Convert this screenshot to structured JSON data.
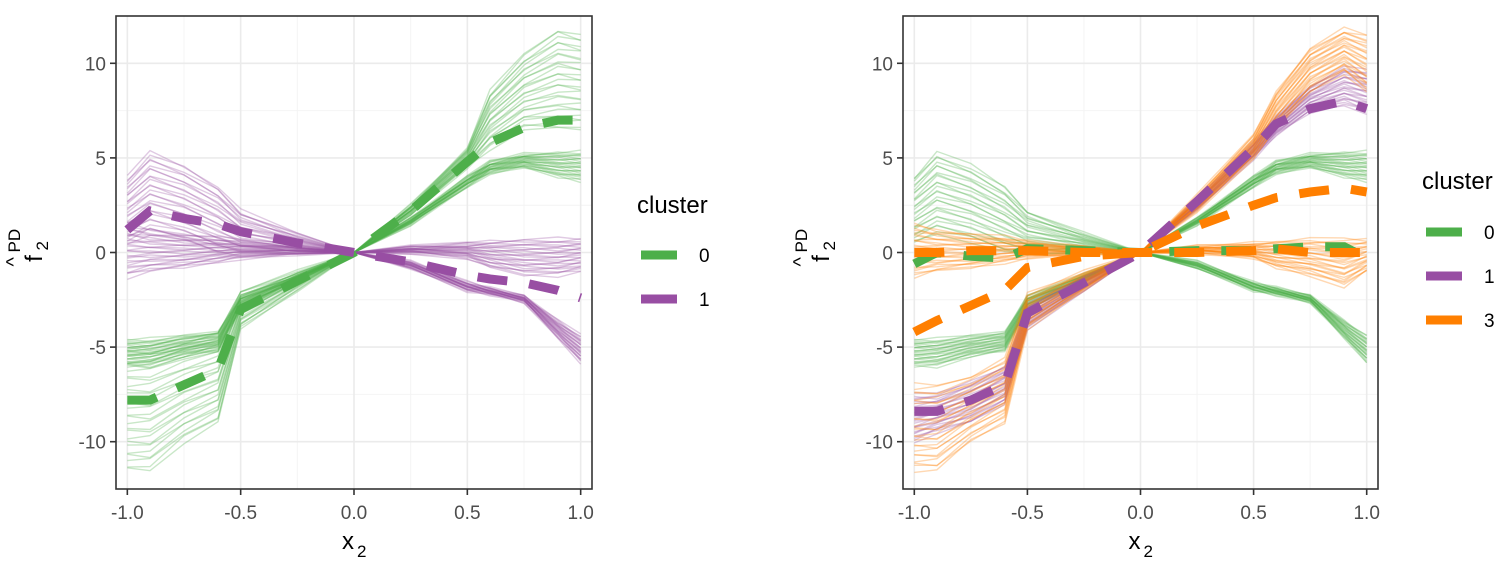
{
  "colors": {
    "cluster_0": "#4daf4a",
    "cluster_1": "#984ea3",
    "cluster_3": "#ff7f00",
    "grid_major": "#ebebeb",
    "grid_minor": "#f4f4f4",
    "panel_border": "#333333"
  },
  "chart_data": [
    {
      "type": "line",
      "xlabel": "x",
      "xlabel_sub": "2",
      "ylabel": "f",
      "ylabel_sub": "2",
      "ylabel_sup": "PD",
      "ylabel_hat": "^",
      "xlim": [
        -1.05,
        1.05
      ],
      "ylim": [
        -12.5,
        12.5
      ],
      "xticks": [
        -1.0,
        -0.5,
        0.0,
        0.5,
        1.0
      ],
      "xtick_labels": [
        "-1.0",
        "-0.5",
        "0.0",
        "0.5",
        "1.0"
      ],
      "yticks": [
        -10,
        -5,
        0,
        5,
        10
      ],
      "ytick_labels": [
        "-10",
        "-5",
        "0",
        "5",
        "10"
      ],
      "grid": true,
      "legend": {
        "title": "cluster",
        "position": "right",
        "labels": [
          "0",
          "1"
        ]
      },
      "x": [
        -1.0,
        -0.9,
        -0.75,
        -0.6,
        -0.5,
        -0.25,
        0.0,
        0.25,
        0.5,
        0.6,
        0.75,
        0.9,
        1.0
      ],
      "series": [
        {
          "name": "0",
          "role": "ice_band",
          "lower": [
            -11.5,
            -11.5,
            -10,
            -9,
            -4,
            -2,
            0,
            2,
            4.5,
            5.5,
            6.5,
            6.5,
            6.5
          ],
          "upper": [
            -5,
            -5,
            -4.6,
            -4.2,
            -2,
            -1,
            0,
            2.5,
            5.5,
            8.5,
            10.5,
            11.8,
            11.5
          ]
        },
        {
          "name": "0",
          "role": "ice_band",
          "lower": [
            -6,
            -6,
            -5.5,
            -5.2,
            -3,
            -1.5,
            0,
            1.5,
            3.5,
            4.2,
            4.5,
            4.0,
            3.8
          ],
          "upper": [
            -4.6,
            -4.6,
            -4.4,
            -4.2,
            -2.3,
            -1.2,
            0,
            1.8,
            4.0,
            4.8,
            5.2,
            5.3,
            5.3
          ]
        },
        {
          "name": "1",
          "role": "ice_band",
          "lower": [
            0.5,
            1.0,
            0.6,
            0.0,
            -0.1,
            0.0,
            0,
            -0.8,
            -2.0,
            -2.2,
            -2.6,
            -4.5,
            -5.8
          ],
          "upper": [
            4.0,
            5.3,
            4.6,
            3.5,
            2.2,
            1.0,
            0,
            -0.5,
            -1.6,
            -1.9,
            -2.3,
            -3.6,
            -4.4
          ]
        },
        {
          "name": "1",
          "role": "ice_band",
          "lower": [
            -1.3,
            -1.0,
            -0.8,
            -0.5,
            -0.3,
            -0.1,
            0,
            0.0,
            -0.3,
            -0.8,
            -1.2,
            -1.2,
            -1.0
          ],
          "upper": [
            1.5,
            1.2,
            1.0,
            0.8,
            0.6,
            0.3,
            0,
            0.3,
            0.5,
            0.6,
            0.7,
            0.7,
            0.7
          ]
        },
        {
          "name": "0",
          "role": "mean",
          "values": [
            -7.8,
            -7.8,
            -7.0,
            -6.2,
            -3.0,
            -1.5,
            0,
            2.2,
            4.8,
            5.8,
            6.6,
            7.0,
            7.0
          ]
        },
        {
          "name": "1",
          "role": "mean",
          "values": [
            1.2,
            2.2,
            1.8,
            1.5,
            1.1,
            0.5,
            0,
            -0.5,
            -1.2,
            -1.4,
            -1.6,
            -2.0,
            -2.4
          ]
        }
      ]
    },
    {
      "type": "line",
      "xlabel": "x",
      "xlabel_sub": "2",
      "ylabel": "f",
      "ylabel_sub": "2",
      "ylabel_sup": "PD",
      "ylabel_hat": "^",
      "xlim": [
        -1.05,
        1.05
      ],
      "ylim": [
        -12.5,
        12.5
      ],
      "xticks": [
        -1.0,
        -0.5,
        0.0,
        0.5,
        1.0
      ],
      "xtick_labels": [
        "-1.0",
        "-0.5",
        "0.0",
        "0.5",
        "1.0"
      ],
      "yticks": [
        -10,
        -5,
        0,
        5,
        10
      ],
      "ytick_labels": [
        "-10",
        "-5",
        "0",
        "5",
        "10"
      ],
      "grid": true,
      "legend": {
        "title": "cluster",
        "position": "right",
        "labels": [
          "0",
          "1",
          "3"
        ]
      },
      "x": [
        -1.0,
        -0.9,
        -0.75,
        -0.6,
        -0.5,
        -0.25,
        0.0,
        0.25,
        0.5,
        0.6,
        0.75,
        0.9,
        1.0
      ],
      "series": [
        {
          "name": "0",
          "role": "ice_band",
          "lower": [
            0.5,
            1.0,
            0.6,
            0.0,
            -0.1,
            0.0,
            0,
            -0.8,
            -2.0,
            -2.2,
            -2.6,
            -4.5,
            -5.8
          ],
          "upper": [
            4.0,
            5.3,
            4.6,
            3.5,
            2.2,
            1.0,
            0,
            -0.5,
            -1.6,
            -1.9,
            -2.3,
            -3.6,
            -4.4
          ]
        },
        {
          "name": "0",
          "role": "ice_band",
          "lower": [
            -6,
            -6,
            -5.5,
            -5.2,
            -3,
            -1.5,
            0,
            1.5,
            3.5,
            4.2,
            4.5,
            4.0,
            3.8
          ],
          "upper": [
            -4.6,
            -4.6,
            -4.4,
            -4.2,
            -2.3,
            -1.2,
            0,
            1.8,
            4.0,
            4.8,
            5.2,
            5.3,
            5.3
          ]
        },
        {
          "name": "1",
          "role": "ice_band",
          "lower": [
            -10,
            -9.5,
            -9,
            -8,
            -4,
            -2,
            0,
            2.3,
            5,
            6.2,
            7.4,
            7.8,
            7.4
          ],
          "upper": [
            -7.5,
            -7.5,
            -6.8,
            -6,
            -2.8,
            -1.3,
            0,
            2.8,
            5.8,
            7.2,
            8.8,
            9.8,
            9.6
          ]
        },
        {
          "name": "3",
          "role": "ice_band",
          "lower": [
            -11.5,
            -11.5,
            -10,
            -9,
            -4,
            -2,
            0,
            2.2,
            5,
            6.5,
            8.5,
            9.5,
            8.5
          ],
          "upper": [
            -7.0,
            -7.0,
            -6.5,
            -5.6,
            -2.2,
            -1.0,
            0,
            3.0,
            6.2,
            8.5,
            10.8,
            11.8,
            11.5
          ]
        },
        {
          "name": "3",
          "role": "ice_band",
          "lower": [
            -1.3,
            -1.0,
            -0.8,
            -0.5,
            -0.3,
            -0.1,
            0,
            0.0,
            -0.3,
            -0.8,
            -1.2,
            -1.8,
            -1.0
          ],
          "upper": [
            1.5,
            1.2,
            1.0,
            0.8,
            0.6,
            0.3,
            0,
            0.3,
            0.5,
            0.6,
            0.7,
            0.7,
            0.7
          ]
        },
        {
          "name": "0",
          "role": "mean",
          "values": [
            -0.6,
            0.0,
            -0.2,
            -0.3,
            0.2,
            0.1,
            0,
            0.1,
            0.1,
            0.2,
            0.3,
            0.3,
            -0.3
          ]
        },
        {
          "name": "1",
          "role": "mean",
          "values": [
            -8.4,
            -8.4,
            -7.8,
            -7.0,
            -3.2,
            -1.6,
            0,
            2.7,
            5.5,
            6.8,
            7.6,
            8.0,
            7.6
          ]
        },
        {
          "name": "3",
          "role": "mean",
          "values": [
            -4.2,
            -3.6,
            -2.8,
            -2.0,
            -0.8,
            -0.2,
            0,
            1.4,
            2.5,
            2.9,
            3.2,
            3.4,
            3.2
          ]
        },
        {
          "name": "3",
          "role": "mean",
          "values": [
            0.0,
            0.0,
            0.1,
            0.1,
            0.1,
            0.0,
            0,
            0.0,
            0.1,
            0.2,
            0.0,
            0.0,
            0.0
          ]
        }
      ]
    }
  ]
}
